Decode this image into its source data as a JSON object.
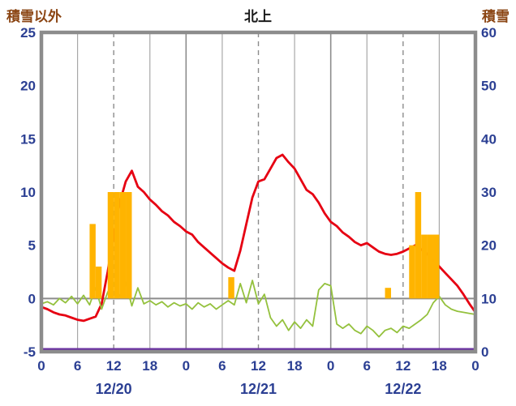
{
  "header": {
    "left_axis_title": "積雪以外",
    "title": "北上",
    "right_axis_title": "積雪"
  },
  "colors": {
    "tick_label": "#2b3f93",
    "axis_title": "#8b4513",
    "title": "#1a1a1a",
    "frame": "#8c8c8c",
    "grid_minor": "#a8a8a8",
    "grid_major": "#8c8c8c",
    "zero_line": "#8c8c8c",
    "red_line": "#e60012",
    "green_line": "#94c13d",
    "orange_bars": "#ffb400",
    "purple_line": "#6a30a0"
  },
  "chart_data": {
    "type": "line",
    "title": "北上",
    "left_axis": {
      "label": "積雪以外",
      "min": -5,
      "max": 25,
      "ticks": [
        25,
        20,
        15,
        10,
        5,
        0,
        -5
      ]
    },
    "right_axis": {
      "label": "積雪",
      "min": 0,
      "max": 60,
      "ticks": [
        60,
        50,
        40,
        30,
        20,
        10,
        0
      ]
    },
    "x_axis": {
      "hours_total": 72,
      "tick_interval": 6,
      "tick_labels": [
        "0",
        "6",
        "12",
        "18",
        "0",
        "6",
        "12",
        "18",
        "0",
        "6",
        "12",
        "18",
        "0"
      ],
      "day_labels": [
        "12/20",
        "12/21",
        "12/22"
      ],
      "grid": "vertical-only",
      "dashed_at_hour_of_day": 12
    },
    "series": [
      {
        "name": "red_line",
        "type": "line",
        "axis": "left",
        "color_key": "red_line",
        "values": [
          -0.8,
          -1.0,
          -1.3,
          -1.5,
          -1.6,
          -1.8,
          -2.0,
          -2.1,
          -1.9,
          -1.7,
          -0.5,
          2.5,
          6,
          9,
          11,
          12,
          10.5,
          10,
          9.3,
          8.8,
          8.2,
          7.8,
          7.2,
          6.8,
          6.3,
          6.0,
          5.3,
          4.8,
          4.3,
          3.8,
          3.3,
          2.9,
          2.6,
          4.5,
          7,
          9.5,
          11,
          11.2,
          12.2,
          13.2,
          13.5,
          12.8,
          12.2,
          11.2,
          10.2,
          9.8,
          9.0,
          8.0,
          7.2,
          6.8,
          6.2,
          5.8,
          5.3,
          5.0,
          5.2,
          4.8,
          4.4,
          4.2,
          4.1,
          4.2,
          4.4,
          4.7,
          5.0,
          4.6,
          4.2,
          3.6,
          3.0,
          2.4,
          1.8,
          1.2,
          0.4,
          -0.5,
          -1.3
        ]
      },
      {
        "name": "green_line",
        "type": "line",
        "axis": "left",
        "color_key": "green_line",
        "values": [
          -0.5,
          -0.3,
          -0.6,
          0,
          -0.4,
          0.2,
          -0.5,
          0.3,
          -0.6,
          1,
          -1,
          0.6,
          1.5,
          0.2,
          1.5,
          -0.7,
          1,
          -0.5,
          -0.2,
          -0.6,
          -0.3,
          -0.8,
          -0.4,
          -0.7,
          -0.5,
          -1,
          -0.4,
          -0.8,
          -0.5,
          -1,
          -0.6,
          -0.2,
          -0.6,
          1.4,
          -0.4,
          1.7,
          -0.5,
          0.4,
          -1.8,
          -2.6,
          -2,
          -3,
          -2.2,
          -2.8,
          -2,
          -2.6,
          0.8,
          1.4,
          1.2,
          -2.4,
          -2.8,
          -2.4,
          -3,
          -3.3,
          -2.6,
          -3,
          -3.6,
          -3,
          -2.8,
          -3.2,
          -2.6,
          -2.8,
          -2.4,
          -2,
          -1.5,
          -0.4,
          0.2,
          -0.6,
          -1,
          -1.2,
          -1.3,
          -1.4,
          -1.5
        ]
      },
      {
        "name": "orange_bars",
        "type": "bar",
        "axis": "left",
        "color_key": "orange_bars",
        "values": [
          0,
          0,
          0,
          0,
          0,
          0,
          0,
          0,
          7,
          3,
          0,
          10,
          10,
          10,
          10,
          0,
          0,
          0,
          0,
          0,
          0,
          0,
          0,
          0,
          0,
          0,
          0,
          0,
          0,
          0,
          0,
          2,
          0,
          0,
          0,
          0,
          0,
          0,
          0,
          0,
          0,
          0,
          0,
          0,
          0,
          0,
          0,
          0,
          0,
          0,
          0,
          0,
          0,
          0,
          0,
          0,
          0,
          1,
          0,
          0,
          0,
          5,
          10,
          6,
          6,
          6,
          0,
          0,
          0,
          0,
          0,
          0
        ]
      },
      {
        "name": "purple_line",
        "type": "hline",
        "axis": "right",
        "color_key": "purple_line",
        "value": 0
      }
    ]
  }
}
